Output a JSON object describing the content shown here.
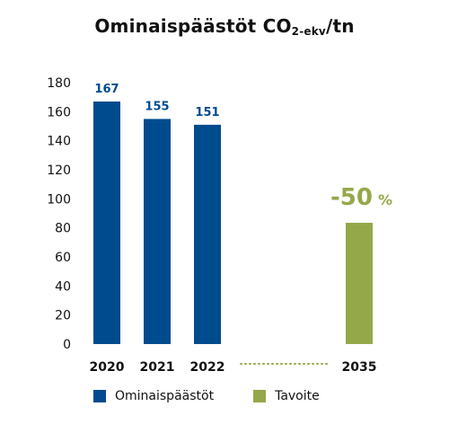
{
  "title": {
    "main": "Ominaispäästöt CO",
    "sub": "2-ekv",
    "suffix": "/tn"
  },
  "colors": {
    "actual": "#004b8d",
    "target": "#94a84a"
  },
  "chart_data": {
    "type": "bar",
    "title": "Ominaispäästöt CO2-ekv/tn",
    "categories": [
      "2020",
      "2021",
      "2022",
      "2035"
    ],
    "series": [
      {
        "name": "Ominaispäästöt",
        "values": [
          167,
          155,
          151,
          null
        ]
      },
      {
        "name": "Tavoite",
        "values": [
          null,
          null,
          null,
          83.5
        ]
      }
    ],
    "data_labels": [
      "167",
      "155",
      "151",
      null
    ],
    "target_label": "-50",
    "target_label_unit": "%",
    "ylim": [
      0,
      180
    ],
    "yticks": [
      0,
      20,
      40,
      60,
      80,
      100,
      120,
      140,
      160,
      180
    ],
    "grid": false,
    "legend": "bottom-left"
  },
  "legend": {
    "items": [
      "Ominaispäästöt",
      "Tavoite"
    ]
  }
}
